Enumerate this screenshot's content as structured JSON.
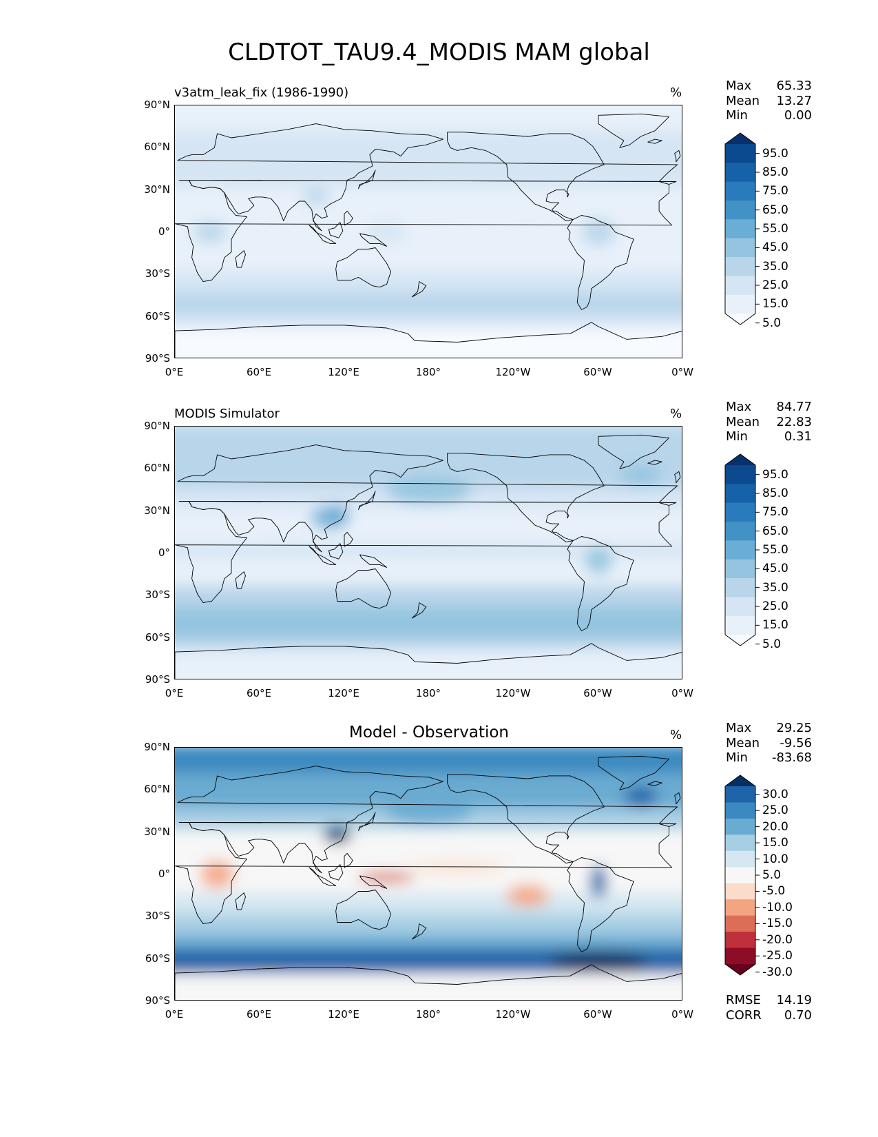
{
  "title": "CLDTOT_TAU9.4_MODIS MAM global",
  "axes": {
    "lat_ticks": [
      "90°N",
      "60°N",
      "30°N",
      "0°",
      "30°S",
      "60°S",
      "90°S"
    ],
    "lon_ticks": [
      "0°E",
      "60°E",
      "120°E",
      "180°",
      "120°W",
      "60°W",
      "0°W"
    ]
  },
  "panels": [
    {
      "id": "test",
      "title": "v3atm_leak_fix (1986-1990)",
      "title_position": "left",
      "units": "%",
      "stats": [
        {
          "label": "Max",
          "value": "65.33"
        },
        {
          "label": "Mean",
          "value": "13.27"
        },
        {
          "label": "Min",
          "value": "0.00"
        }
      ],
      "colorbar": {
        "colormap": "Blues",
        "labels": [
          "95.0",
          "85.0",
          "75.0",
          "65.0",
          "55.0",
          "45.0",
          "35.0",
          "25.0",
          "15.0",
          "5.0"
        ],
        "colors": [
          "#08306b",
          "#0b4a8f",
          "#1661a8",
          "#2a7bbb",
          "#4292c6",
          "#6aaed6",
          "#94c4df",
          "#b8d5ea",
          "#d5e5f4",
          "#e8f1fa",
          "#f7fbff"
        ]
      }
    },
    {
      "id": "reference",
      "title": "MODIS Simulator",
      "title_position": "left",
      "units": "%",
      "stats": [
        {
          "label": "Max",
          "value": "84.77"
        },
        {
          "label": "Mean",
          "value": "22.83"
        },
        {
          "label": "Min",
          "value": "0.31"
        }
      ],
      "colorbar": {
        "colormap": "Blues",
        "labels": [
          "95.0",
          "85.0",
          "75.0",
          "65.0",
          "55.0",
          "45.0",
          "35.0",
          "25.0",
          "15.0",
          "5.0"
        ],
        "colors": [
          "#08306b",
          "#0b4a8f",
          "#1661a8",
          "#2a7bbb",
          "#4292c6",
          "#6aaed6",
          "#94c4df",
          "#b8d5ea",
          "#d5e5f4",
          "#e8f1fa",
          "#f7fbff"
        ]
      }
    },
    {
      "id": "difference",
      "title": "Model - Observation",
      "title_position": "center",
      "units": "%",
      "stats": [
        {
          "label": "Max",
          "value": "29.25"
        },
        {
          "label": "Mean",
          "value": "-9.56"
        },
        {
          "label": "Min",
          "value": "-83.68"
        }
      ],
      "colorbar": {
        "colormap": "RdBu",
        "labels": [
          "30.0",
          "25.0",
          "20.0",
          "15.0",
          "10.0",
          "5.0",
          "-5.0",
          "-10.0",
          "-15.0",
          "-20.0",
          "-25.0",
          "-30.0"
        ],
        "colors": [
          "#053061",
          "#1f63a8",
          "#3a89c0",
          "#6aabd1",
          "#a7cfe4",
          "#d5e7f1",
          "#f7f7f7",
          "#fbdcc8",
          "#f3a582",
          "#dc6e57",
          "#c0303a",
          "#8e0d26",
          "#67001f"
        ]
      },
      "metrics": [
        {
          "label": "RMSE",
          "value": "14.19"
        },
        {
          "label": "CORR",
          "value": "0.70"
        }
      ]
    }
  ]
}
